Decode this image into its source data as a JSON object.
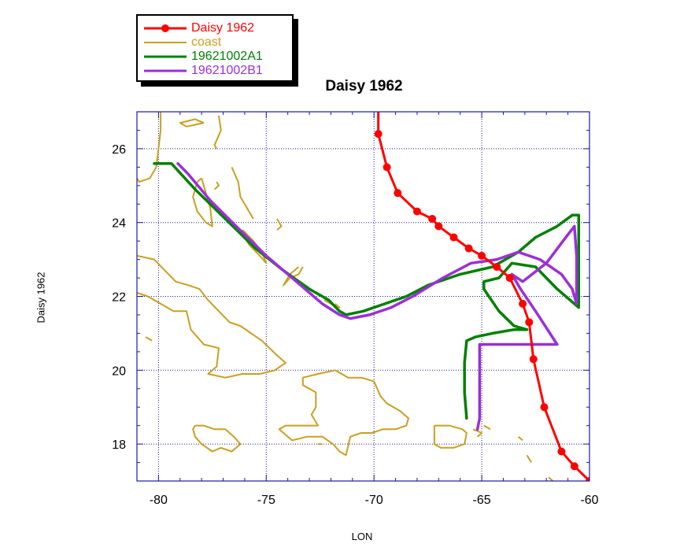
{
  "chart_data": {
    "type": "line",
    "title": "Daisy 1962",
    "xlabel": "LON",
    "ylabel": "Daisy 1962",
    "xlim": [
      -81,
      -60
    ],
    "ylim": [
      17,
      27
    ],
    "xticks": [
      -80,
      -75,
      -70,
      -65,
      -60
    ],
    "yticks": [
      18,
      20,
      22,
      24,
      26
    ],
    "grid": true,
    "legend_position": "top-left",
    "series": [
      {
        "name": "Daisy 1962",
        "color": "#ff0000",
        "markers": true,
        "points": [
          [
            -69.8,
            27.0
          ],
          [
            -69.8,
            26.4
          ],
          [
            -69.4,
            25.5
          ],
          [
            -68.9,
            24.8
          ],
          [
            -68.0,
            24.3
          ],
          [
            -67.3,
            24.1
          ],
          [
            -67.0,
            23.9
          ],
          [
            -66.3,
            23.6
          ],
          [
            -65.6,
            23.3
          ],
          [
            -65.0,
            23.1
          ],
          [
            -64.3,
            22.8
          ],
          [
            -63.7,
            22.5
          ],
          [
            -63.1,
            21.8
          ],
          [
            -62.8,
            21.3
          ],
          [
            -62.6,
            20.3
          ],
          [
            -62.1,
            19.0
          ],
          [
            -61.3,
            17.8
          ],
          [
            -60.7,
            17.4
          ],
          [
            -60.0,
            17.0
          ]
        ]
      },
      {
        "name": "coast",
        "color": "#c8a020",
        "markers": false,
        "segments": [
          [
            [
              -79.9,
              27.0
            ],
            [
              -79.9,
              26.5
            ],
            [
              -80.0,
              26.0
            ],
            [
              -80.1,
              25.5
            ],
            [
              -80.4,
              25.2
            ],
            [
              -80.9,
              25.1
            ],
            [
              -81.0,
              25.2
            ]
          ],
          [
            [
              -77.9,
              26.7
            ],
            [
              -78.7,
              26.6
            ],
            [
              -79.0,
              26.7
            ],
            [
              -78.3,
              26.8
            ],
            [
              -77.9,
              26.7
            ]
          ],
          [
            [
              -77.2,
              26.9
            ],
            [
              -77.1,
              26.5
            ],
            [
              -77.4,
              26.1
            ],
            [
              -77.3,
              26.0
            ]
          ],
          [
            [
              -78.0,
              25.2
            ],
            [
              -77.8,
              24.8
            ],
            [
              -77.6,
              24.4
            ],
            [
              -77.5,
              23.9
            ],
            [
              -77.8,
              24.0
            ],
            [
              -78.2,
              24.3
            ],
            [
              -78.4,
              24.7
            ],
            [
              -78.2,
              25.1
            ],
            [
              -78.0,
              25.2
            ]
          ],
          [
            [
              -76.6,
              25.5
            ],
            [
              -76.3,
              25.1
            ],
            [
              -76.2,
              24.7
            ],
            [
              -75.8,
              24.3
            ],
            [
              -75.6,
              24.1
            ]
          ],
          [
            [
              -77.3,
              25.1
            ],
            [
              -77.2,
              25.0
            ],
            [
              -77.4,
              24.9
            ]
          ],
          [
            [
              -76.1,
              23.8
            ],
            [
              -75.6,
              23.5
            ],
            [
              -75.2,
              23.2
            ],
            [
              -75.0,
              22.9
            ],
            [
              -75.3,
              23.1
            ],
            [
              -75.8,
              23.4
            ],
            [
              -76.0,
              23.6
            ]
          ],
          [
            [
              -74.5,
              24.1
            ],
            [
              -74.3,
              23.9
            ],
            [
              -74.5,
              23.8
            ]
          ],
          [
            [
              -73.5,
              22.8
            ],
            [
              -73.9,
              22.6
            ],
            [
              -74.2,
              22.3
            ],
            [
              -73.9,
              22.5
            ],
            [
              -73.5,
              22.6
            ],
            [
              -73.3,
              22.8
            ]
          ],
          [
            [
              -72.3,
              21.9
            ],
            [
              -72.0,
              21.8
            ],
            [
              -71.6,
              21.7
            ],
            [
              -71.8,
              21.8
            ]
          ],
          [
            [
              -81.0,
              23.1
            ],
            [
              -80.2,
              23.0
            ],
            [
              -79.7,
              22.7
            ],
            [
              -79.2,
              22.4
            ],
            [
              -78.6,
              22.3
            ],
            [
              -78.1,
              22.2
            ],
            [
              -77.7,
              21.9
            ],
            [
              -77.2,
              21.6
            ],
            [
              -76.7,
              21.3
            ],
            [
              -76.2,
              21.2
            ],
            [
              -75.7,
              21.0
            ],
            [
              -75.2,
              20.8
            ],
            [
              -74.5,
              20.4
            ],
            [
              -74.1,
              20.2
            ],
            [
              -74.6,
              20.0
            ],
            [
              -75.3,
              19.9
            ],
            [
              -76.1,
              19.9
            ],
            [
              -76.9,
              19.8
            ],
            [
              -77.7,
              19.9
            ],
            [
              -77.3,
              20.1
            ],
            [
              -77.2,
              20.6
            ],
            [
              -77.9,
              20.7
            ],
            [
              -78.5,
              21.1
            ],
            [
              -78.7,
              21.6
            ],
            [
              -79.3,
              21.6
            ],
            [
              -79.9,
              21.8
            ],
            [
              -80.5,
              22.0
            ],
            [
              -81.0,
              22.1
            ]
          ],
          [
            [
              -80.6,
              20.9
            ],
            [
              -80.3,
              20.8
            ]
          ],
          [
            [
              -71.8,
              20.0
            ],
            [
              -72.6,
              19.9
            ],
            [
              -73.3,
              19.8
            ],
            [
              -73.3,
              19.6
            ],
            [
              -72.7,
              19.4
            ],
            [
              -72.7,
              19.0
            ],
            [
              -72.9,
              18.8
            ],
            [
              -72.6,
              18.5
            ],
            [
              -73.4,
              18.5
            ],
            [
              -74.1,
              18.5
            ],
            [
              -74.4,
              18.4
            ],
            [
              -73.8,
              18.1
            ],
            [
              -73.1,
              18.2
            ],
            [
              -72.4,
              18.2
            ],
            [
              -71.9,
              18.0
            ],
            [
              -71.6,
              17.8
            ],
            [
              -71.3,
              17.7
            ],
            [
              -71.1,
              18.2
            ],
            [
              -70.6,
              18.3
            ],
            [
              -70.1,
              18.3
            ],
            [
              -69.6,
              18.4
            ],
            [
              -69.0,
              18.4
            ],
            [
              -68.5,
              18.5
            ],
            [
              -68.4,
              18.7
            ],
            [
              -68.8,
              18.9
            ],
            [
              -69.4,
              19.1
            ],
            [
              -69.7,
              19.3
            ],
            [
              -70.0,
              19.7
            ],
            [
              -70.6,
              19.8
            ],
            [
              -71.2,
              19.8
            ],
            [
              -71.8,
              20.0
            ]
          ],
          [
            [
              -72.6,
              18.0
            ],
            [
              -72.4,
              18.0
            ]
          ],
          [
            [
              -78.3,
              18.5
            ],
            [
              -77.9,
              18.5
            ],
            [
              -77.4,
              18.4
            ],
            [
              -76.9,
              18.4
            ],
            [
              -76.5,
              18.2
            ],
            [
              -76.2,
              18.0
            ],
            [
              -76.6,
              17.8
            ],
            [
              -77.1,
              17.9
            ],
            [
              -77.5,
              17.8
            ],
            [
              -78.0,
              18.0
            ],
            [
              -78.3,
              18.2
            ],
            [
              -78.4,
              18.4
            ],
            [
              -78.3,
              18.5
            ]
          ],
          [
            [
              -67.2,
              18.5
            ],
            [
              -66.5,
              18.5
            ],
            [
              -65.9,
              18.4
            ],
            [
              -65.7,
              18.3
            ],
            [
              -65.8,
              18.0
            ],
            [
              -66.3,
              17.9
            ],
            [
              -66.9,
              17.9
            ],
            [
              -67.2,
              18.0
            ],
            [
              -67.2,
              18.5
            ]
          ],
          [
            [
              -65.4,
              18.4
            ],
            [
              -65.0,
              18.3
            ],
            [
              -65.2,
              18.2
            ]
          ],
          [
            [
              -64.9,
              18.5
            ],
            [
              -64.6,
              18.4
            ]
          ],
          [
            [
              -63.3,
              18.2
            ],
            [
              -63.1,
              18.1
            ]
          ],
          [
            [
              -62.9,
              17.7
            ],
            [
              -62.8,
              17.6
            ],
            [
              -62.7,
              17.5
            ]
          ],
          [
            [
              -61.9,
              17.1
            ],
            [
              -61.7,
              17.0
            ]
          ],
          [
            [
              -61.4,
              17.0
            ],
            [
              -61.2,
              16.9
            ]
          ]
        ]
      },
      {
        "name": "19621002A1",
        "color": "#008000",
        "markers": false,
        "points": [
          [
            -80.2,
            25.6
          ],
          [
            -79.4,
            25.6
          ],
          [
            -78.3,
            24.9
          ],
          [
            -76.9,
            24.1
          ],
          [
            -75.5,
            23.3
          ],
          [
            -74.2,
            22.7
          ],
          [
            -73.0,
            22.2
          ],
          [
            -72.1,
            21.9
          ],
          [
            -71.6,
            21.6
          ],
          [
            -71.3,
            21.5
          ],
          [
            -70.5,
            21.6
          ],
          [
            -69.5,
            21.8
          ],
          [
            -68.5,
            22.0
          ],
          [
            -67.5,
            22.3
          ],
          [
            -66.0,
            22.6
          ],
          [
            -64.5,
            22.8
          ],
          [
            -63.3,
            23.2
          ],
          [
            -62.5,
            23.6
          ],
          [
            -61.5,
            23.9
          ],
          [
            -60.8,
            24.2
          ],
          [
            -60.5,
            24.2
          ],
          [
            -60.5,
            23.4
          ],
          [
            -60.5,
            22.4
          ],
          [
            -60.5,
            21.7
          ],
          [
            -61.5,
            22.2
          ],
          [
            -62.5,
            22.8
          ],
          [
            -63.6,
            22.9
          ],
          [
            -64.2,
            22.5
          ],
          [
            -64.9,
            22.4
          ],
          [
            -64.9,
            22.2
          ],
          [
            -64.2,
            21.6
          ],
          [
            -63.5,
            21.2
          ],
          [
            -62.9,
            21.1
          ],
          [
            -63.5,
            21.1
          ],
          [
            -64.5,
            21.0
          ],
          [
            -65.3,
            20.9
          ],
          [
            -65.7,
            20.8
          ],
          [
            -65.8,
            20.2
          ],
          [
            -65.8,
            19.4
          ],
          [
            -65.7,
            18.7
          ]
        ]
      },
      {
        "name": "19621002B1",
        "color": "#9a30d8",
        "markers": false,
        "points": [
          [
            -79.1,
            25.6
          ],
          [
            -78.6,
            25.3
          ],
          [
            -77.6,
            24.6
          ],
          [
            -76.4,
            23.9
          ],
          [
            -75.0,
            23.1
          ],
          [
            -73.6,
            22.4
          ],
          [
            -72.4,
            21.8
          ],
          [
            -71.6,
            21.5
          ],
          [
            -71.1,
            21.4
          ],
          [
            -70.2,
            21.5
          ],
          [
            -69.2,
            21.7
          ],
          [
            -68.2,
            22.0
          ],
          [
            -66.8,
            22.5
          ],
          [
            -65.5,
            22.9
          ],
          [
            -64.3,
            23.0
          ],
          [
            -63.3,
            23.2
          ],
          [
            -62.3,
            23.0
          ],
          [
            -61.3,
            22.6
          ],
          [
            -60.8,
            22.2
          ],
          [
            -60.6,
            21.8
          ],
          [
            -60.6,
            23.1
          ],
          [
            -60.7,
            23.9
          ],
          [
            -61.1,
            23.6
          ],
          [
            -62.0,
            22.9
          ],
          [
            -63.1,
            22.4
          ],
          [
            -63.6,
            22.6
          ],
          [
            -63.2,
            22.2
          ],
          [
            -62.5,
            21.6
          ],
          [
            -61.5,
            20.7
          ],
          [
            -62.5,
            20.7
          ],
          [
            -63.8,
            20.7
          ],
          [
            -65.1,
            20.7
          ],
          [
            -65.1,
            19.8
          ],
          [
            -65.1,
            18.7
          ],
          [
            -65.2,
            18.4
          ]
        ]
      }
    ]
  }
}
